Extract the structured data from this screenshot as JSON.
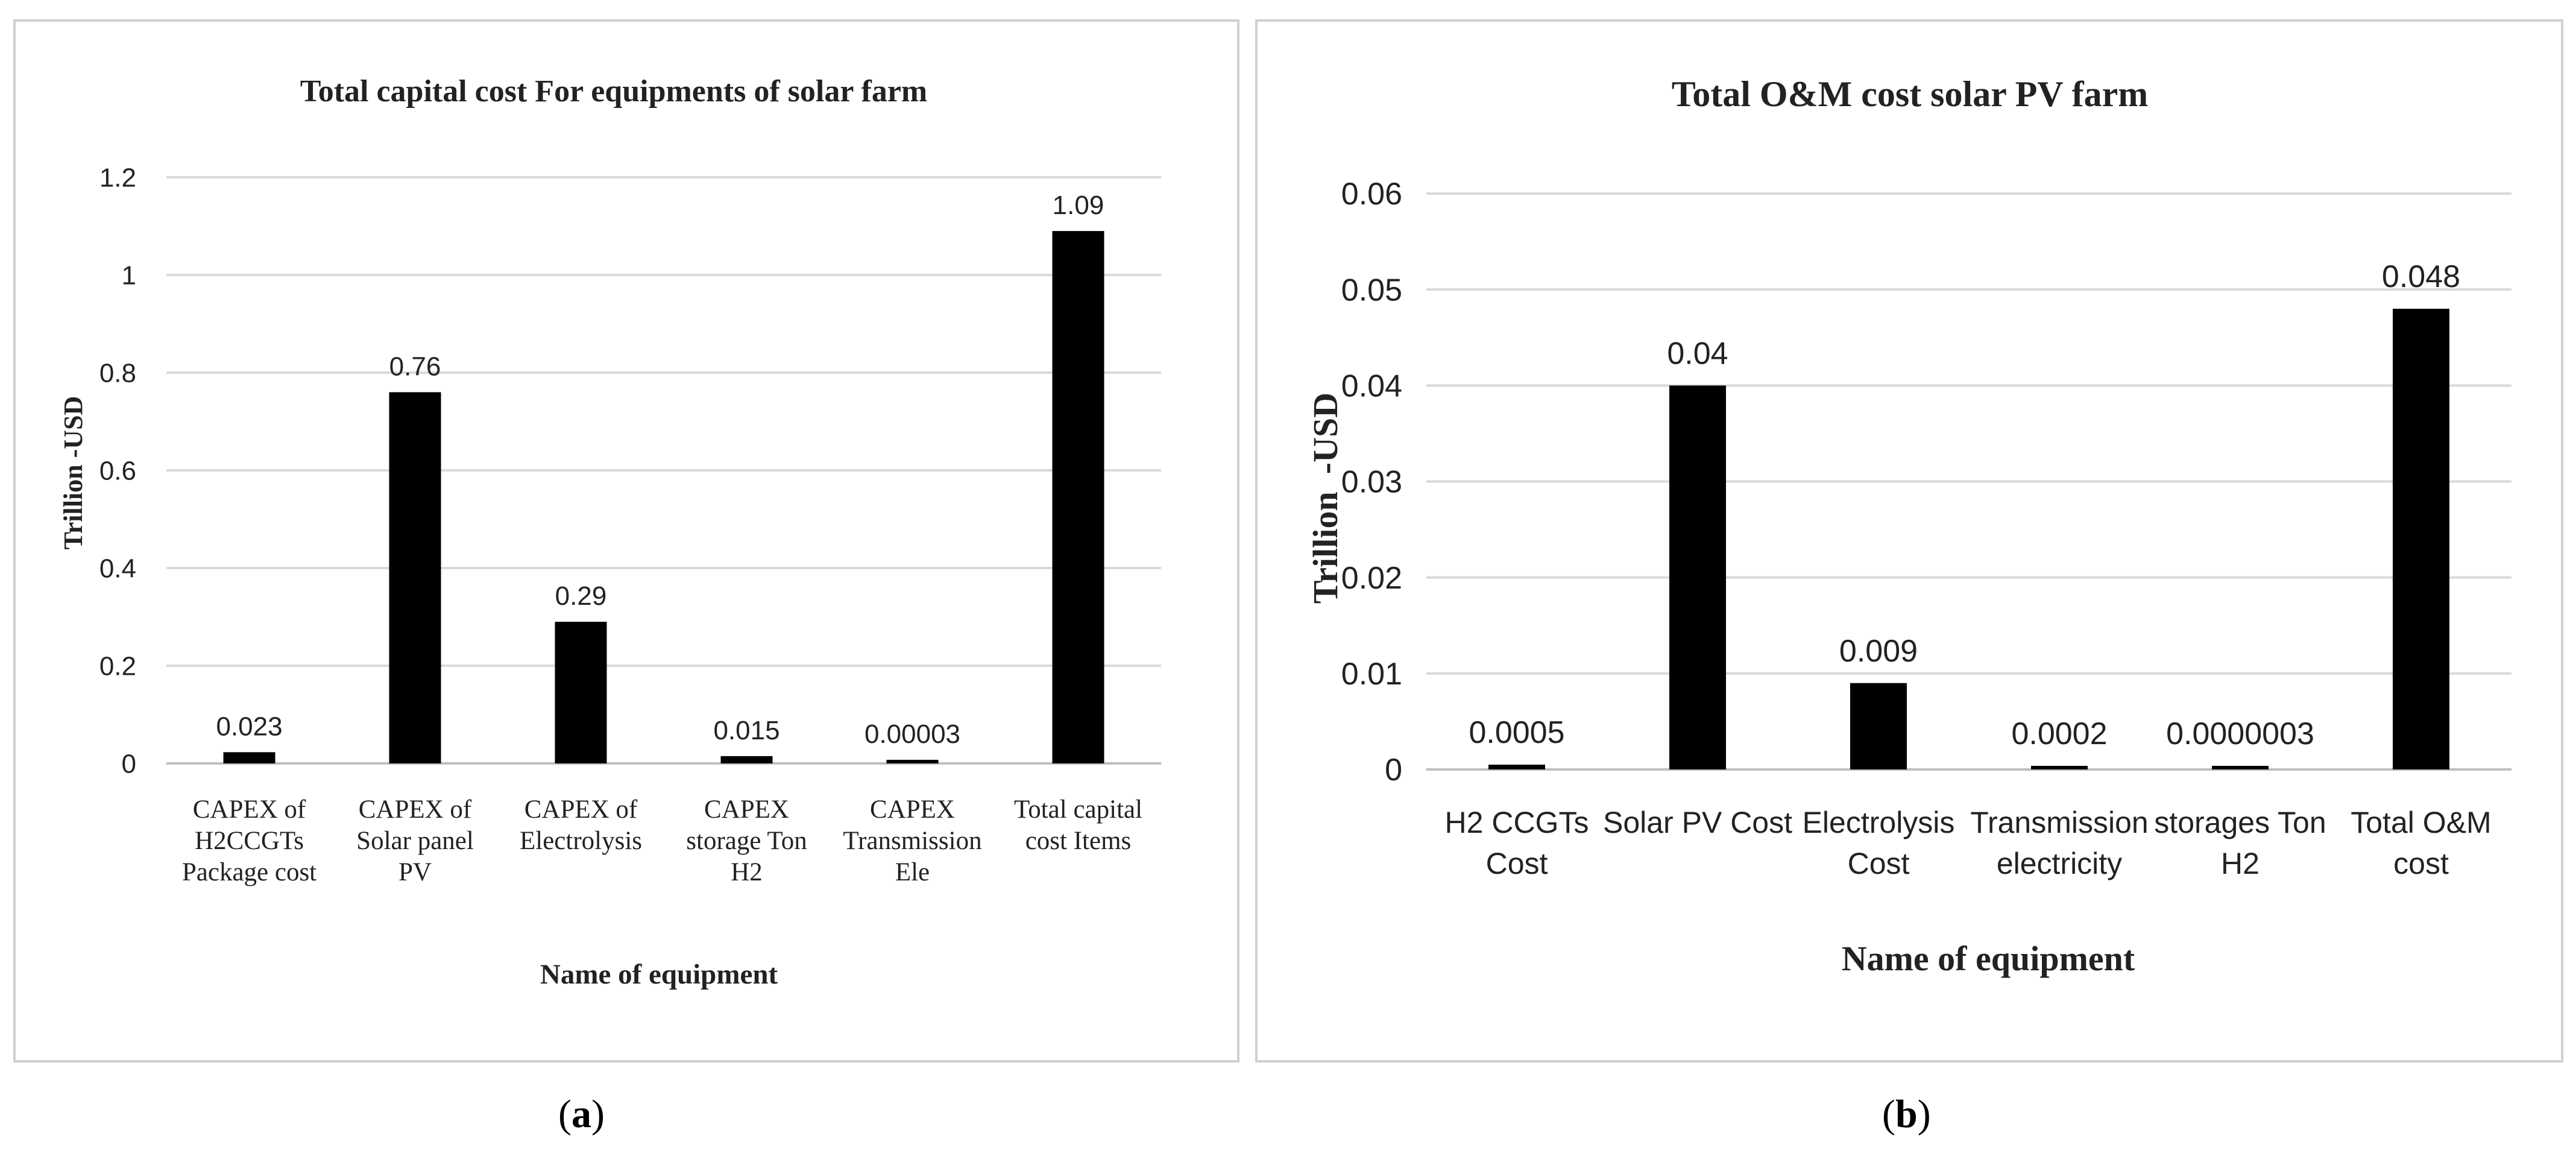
{
  "chart_data": [
    {
      "type": "bar",
      "title": "Total capital cost For equipments of solar farm",
      "xlabel": "Name of equipment",
      "ylabel": "Trillion -USD",
      "ylim": [
        0,
        1.2
      ],
      "yticks": [
        "0",
        "0.2",
        "0.4",
        "0.6",
        "0.8",
        "1",
        "1.2"
      ],
      "grid": true,
      "categories": [
        [
          "CAPEX of",
          "H2CCGTs",
          "Package cost"
        ],
        [
          "CAPEX of",
          "Solar panel",
          "PV"
        ],
        [
          "CAPEX of",
          "Electrolysis"
        ],
        [
          "CAPEX",
          "storage Ton",
          "H2"
        ],
        [
          "CAPEX",
          "Transmission",
          "Ele"
        ],
        [
          "Total capital",
          "cost Items"
        ]
      ],
      "values": [
        0.023,
        0.76,
        0.29,
        0.015,
        3e-05,
        1.09
      ],
      "data_labels": [
        "0.023",
        "0.76",
        "0.29",
        "0.015",
        "0.00003",
        "1.09"
      ],
      "bar_color": "#000000",
      "caption": "a"
    },
    {
      "type": "bar",
      "title": "Total O&M cost solar PV farm",
      "xlabel": "Name of equipment",
      "ylabel": "Trillion  -USD",
      "ylim": [
        0,
        0.06
      ],
      "yticks": [
        "0",
        "0.01",
        "0.02",
        "0.03",
        "0.04",
        "0.05",
        "0.06"
      ],
      "grid": true,
      "categories": [
        [
          "H2 CCGTs",
          "Cost"
        ],
        [
          "Solar PV Cost"
        ],
        [
          "Electrolysis",
          "Cost"
        ],
        [
          "Transmission",
          "electricity"
        ],
        [
          "storages Ton",
          "H2"
        ],
        [
          "Total O&M",
          "cost"
        ]
      ],
      "values": [
        0.0005,
        0.04,
        0.009,
        0.0002,
        3e-07,
        0.048
      ],
      "data_labels": [
        "0.0005",
        "0.04",
        "0.009",
        "0.0002",
        "0.0000003",
        "0.048"
      ],
      "bar_color": "#000000",
      "caption": "b"
    }
  ]
}
